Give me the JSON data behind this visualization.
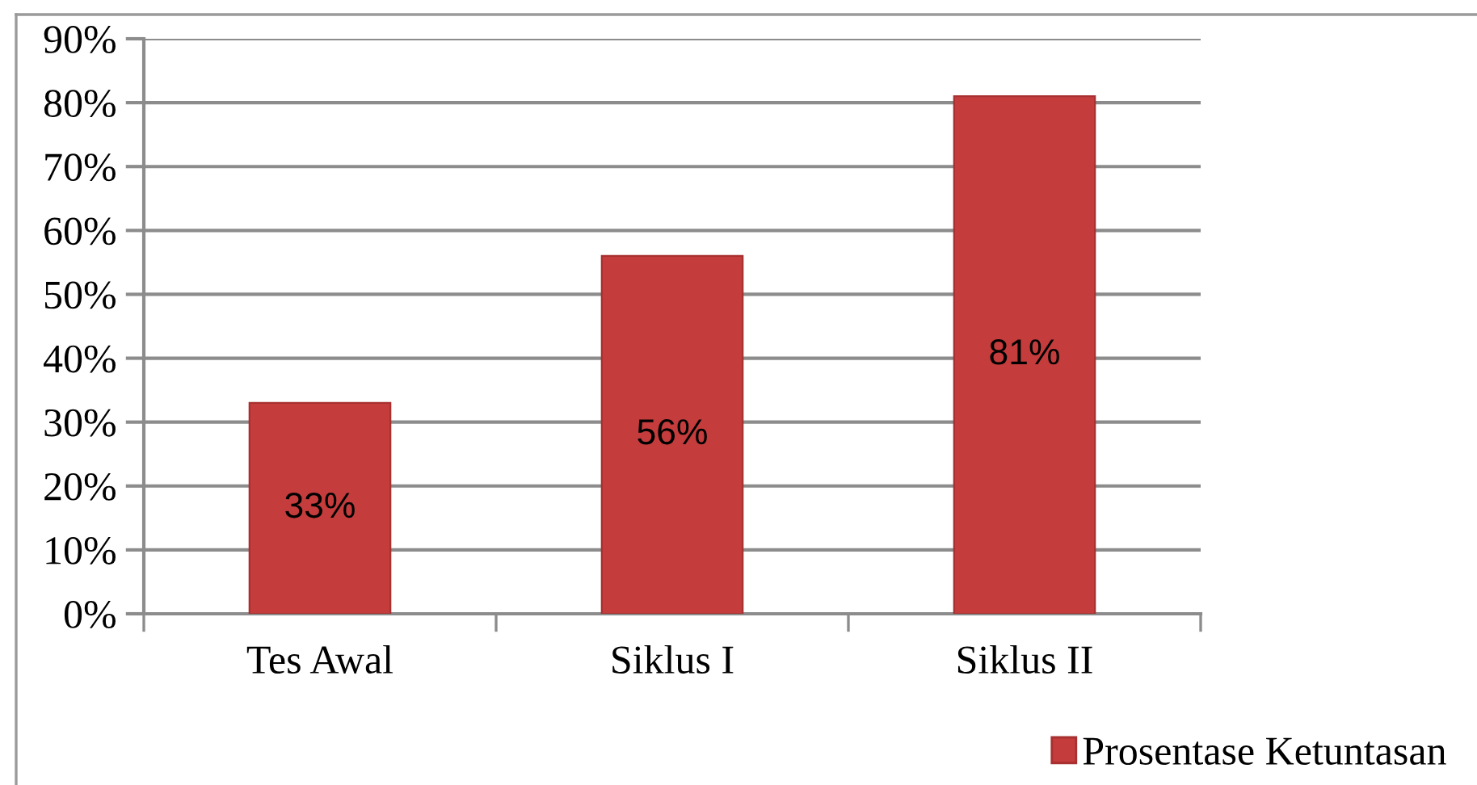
{
  "chart_data": {
    "type": "bar",
    "categories": [
      "Tes Awal",
      "Siklus I",
      "Siklus II"
    ],
    "series": [
      {
        "name": "Prosentase Ketuntasan",
        "color": "#c43c3c",
        "values": [
          33,
          56,
          81
        ],
        "value_labels": [
          "33%",
          "56%",
          "81%"
        ]
      }
    ],
    "ylim": [
      0,
      90
    ],
    "yticks": [
      {
        "value": 0,
        "label": "0%"
      },
      {
        "value": 10,
        "label": "10%"
      },
      {
        "value": 20,
        "label": "20%"
      },
      {
        "value": 30,
        "label": "30%"
      },
      {
        "value": 40,
        "label": "40%"
      },
      {
        "value": 50,
        "label": "50%"
      },
      {
        "value": 60,
        "label": "60%"
      },
      {
        "value": 70,
        "label": "70%"
      },
      {
        "value": 80,
        "label": "80%"
      },
      {
        "value": 90,
        "label": "90%"
      }
    ],
    "grid": "y",
    "legend": "bottom right"
  }
}
